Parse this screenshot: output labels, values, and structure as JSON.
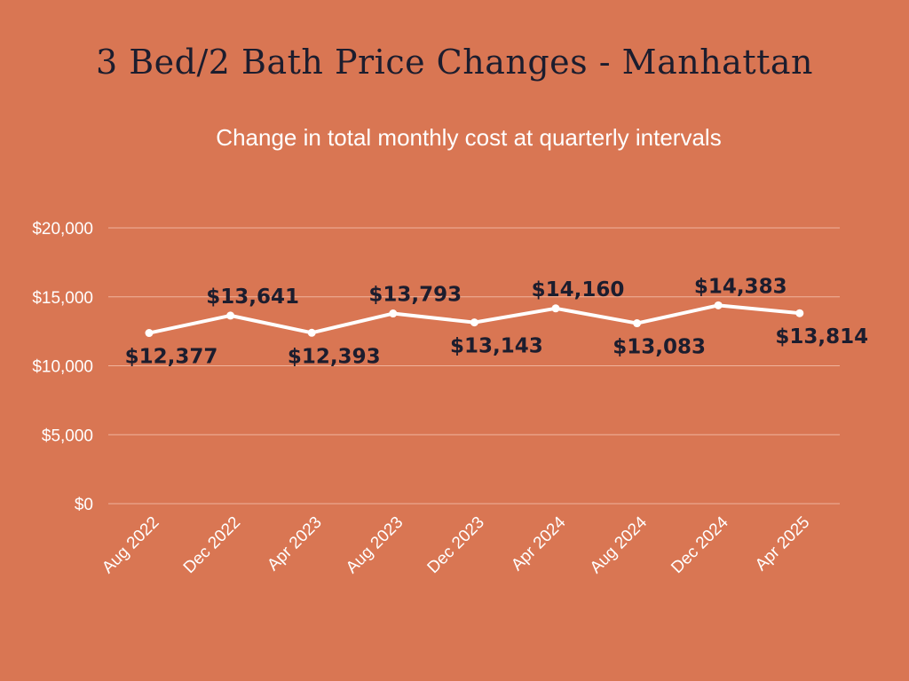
{
  "chart_data": {
    "type": "line",
    "title": "3 Bed/2 Bath Price Changes - Manhattan",
    "subtitle": "Change in total monthly cost at quarterly intervals",
    "xlabel": "",
    "ylabel": "",
    "categories": [
      "Aug 2022",
      "Dec 2022",
      "Apr 2023",
      "Aug 2023",
      "Dec 2023",
      "Apr 2024",
      "Aug 2024",
      "Dec 2024",
      "Apr 2025"
    ],
    "values": [
      12377,
      13641,
      12393,
      13793,
      13143,
      14160,
      13083,
      14383,
      13814
    ],
    "data_labels": [
      "$12,377",
      "$13,641",
      "$12,393",
      "$13,793",
      "$13,143",
      "$14,160",
      "$13,083",
      "$14,383",
      "$13,814"
    ],
    "ylim": [
      0,
      20000
    ],
    "yticks": [
      0,
      5000,
      10000,
      15000,
      20000
    ],
    "ytick_labels": [
      "$0",
      "$5,000",
      "$10,000",
      "$15,000",
      "$20,000"
    ],
    "grid": true,
    "legend": "none"
  },
  "colors": {
    "background": "#d97653",
    "line": "#ffffff",
    "grid": "#f0b39c",
    "data_label": "#1c1d2e"
  }
}
